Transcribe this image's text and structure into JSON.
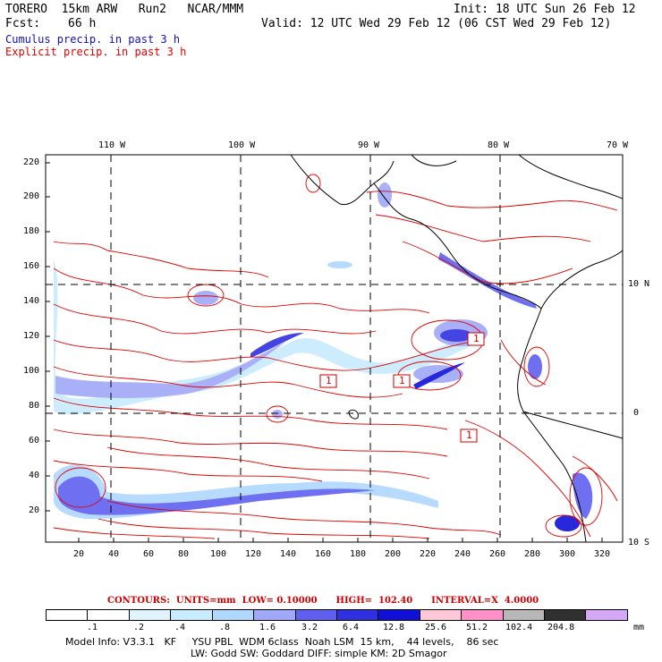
{
  "header": {
    "model": "TORERO  15km ARW   Run2   NCAR/MMM",
    "init": "Init: 18 UTC Sun 26 Feb 12",
    "fcst_label": "Fcst:",
    "fcst_value": "66 h",
    "valid": "Valid: 12 UTC Wed 29 Feb 12 (06 CST Wed 29 Feb 12)",
    "field1": "Cumulus precip. in past 3 h",
    "field2": "Explicit precip. in past 3 h"
  },
  "colors": {
    "field1": "#1010c0",
    "field2": "#e00000",
    "coast": "#000000",
    "contour": "#e00000"
  },
  "map": {
    "lon_labels": [
      "110 W",
      "100 W",
      "90 W",
      "80 W",
      "70 W"
    ],
    "lat_labels": [
      "10 N",
      "0",
      "10 S"
    ],
    "y_ticks": [
      "220",
      "200",
      "180",
      "160",
      "140",
      "120",
      "100",
      "80",
      "60",
      "40",
      "20"
    ],
    "x_ticks": [
      "20",
      "40",
      "60",
      "80",
      "100",
      "120",
      "140",
      "160",
      "180",
      "200",
      "220",
      "240",
      "260",
      "280",
      "300",
      "320"
    ],
    "boxes": [
      "1",
      "1",
      "1",
      "1"
    ]
  },
  "contours_note": "CONTOURS:  UNITS=mm  LOW= 0.10000      HIGH=  102.40      INTERVAL=X  4.0000",
  "legend": {
    "labels": [
      ".1",
      ".2",
      ".4",
      ".8",
      "1.6",
      "3.2",
      "6.4",
      "12.8",
      "25.6",
      "51.2",
      "102.4",
      "204.8"
    ],
    "colors": [
      "#ffffff",
      "#ffffff",
      "#e0f4ff",
      "#c8ecff",
      "#b0d8ff",
      "#a0a8f8",
      "#6060f0",
      "#3030e0",
      "#1010d8",
      "#ffc8d8",
      "#ff90c8",
      "#b8b8b8",
      "#303030",
      "#d8a8f8"
    ],
    "unit": "mm"
  },
  "model_info": {
    "line1": "Model Info: V3.3.1   KF     YSU PBL  WDM 6class  Noah LSM  15 km,    44 levels,    86 sec",
    "line2": "LW: Godd SW: Goddard DIFF: simple KM: 2D Smagor"
  }
}
